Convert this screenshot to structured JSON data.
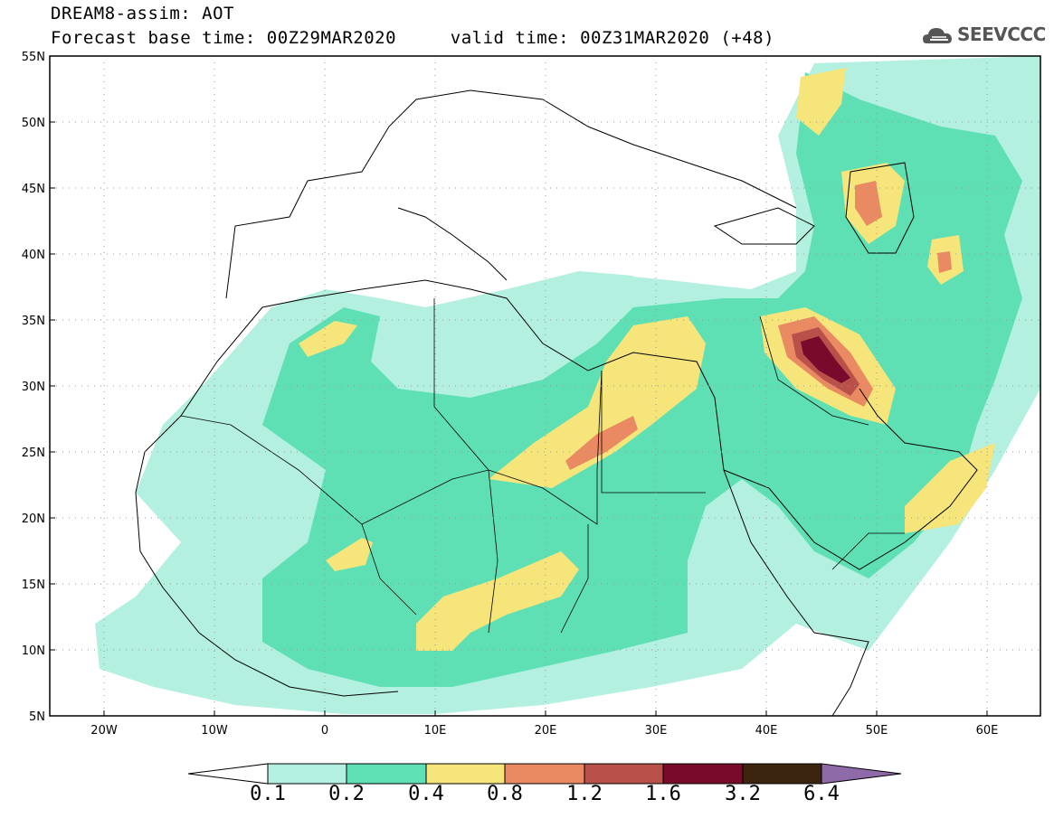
{
  "header": {
    "title": "DREAM8-assim: AOT",
    "base_label": "Forecast base time:",
    "base_time": "00Z29MAR2020",
    "valid_label": "valid time:",
    "valid_time": "00Z31MAR2020",
    "lead": "(+48)"
  },
  "logo": {
    "text": "SEEVCCC",
    "icon": "cloud-icon"
  },
  "map": {
    "lon_range": [
      -25,
      65
    ],
    "lat_range": [
      5,
      55
    ],
    "lat_ticks": [
      "55N",
      "50N",
      "45N",
      "40N",
      "35N",
      "30N",
      "25N",
      "20N",
      "15N",
      "10N",
      "5N"
    ],
    "lon_ticks": [
      "20W",
      "10W",
      "0",
      "10E",
      "20E",
      "30E",
      "40E",
      "50E",
      "60E"
    ],
    "grid": "dotted"
  },
  "colorbar": {
    "labels": [
      "0.1",
      "0.2",
      "0.4",
      "0.8",
      "1.2",
      "1.6",
      "3.2",
      "6.4"
    ],
    "colors": [
      "#b3f0e0",
      "#5fe0b4",
      "#f5e57a",
      "#e98a62",
      "#b9504a",
      "#7a0a2c",
      "#3b2410",
      "#8f6aa8"
    ]
  }
}
